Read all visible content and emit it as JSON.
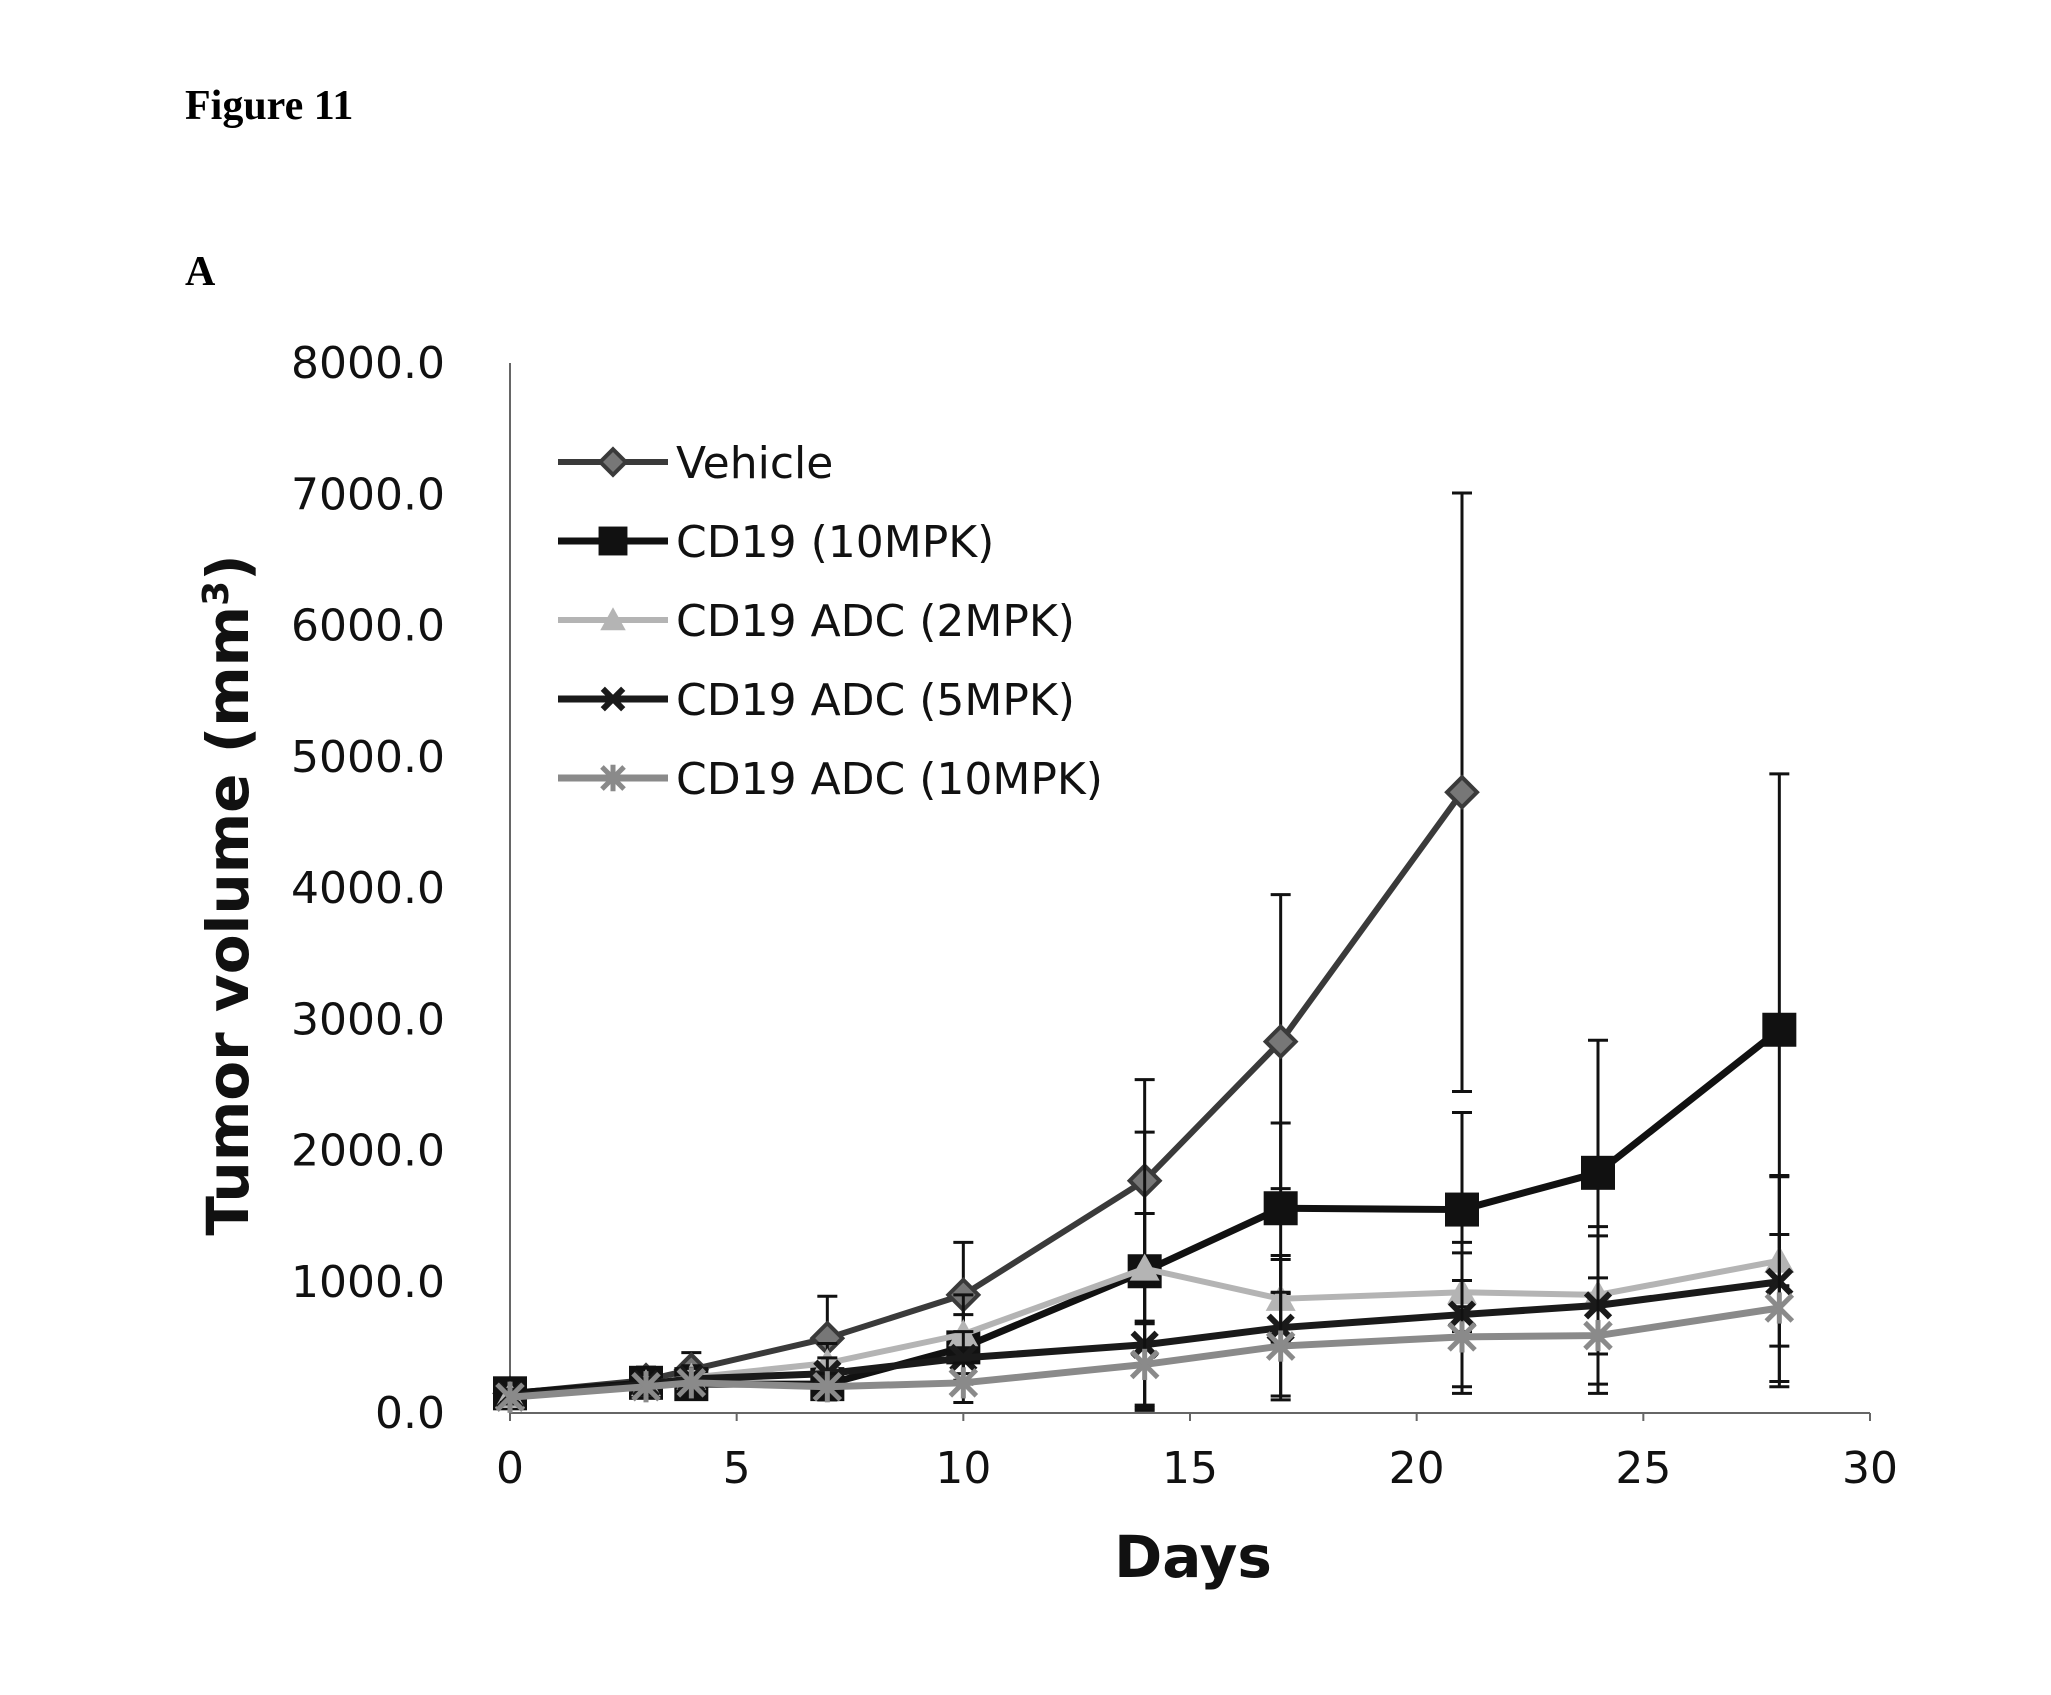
{
  "figure": {
    "title": "Figure 11",
    "panel_label": "A"
  },
  "colors": {
    "vehicle": "#3a3a3a",
    "cd19_10mpk": "#111111",
    "adc_2mpk": "#b4b4b4",
    "adc_5mpk": "#1a1a1a",
    "adc_10mpk": "#8a8a8a"
  },
  "chart_data": {
    "type": "line",
    "title": "",
    "xlabel": "Days",
    "ylabel": "Tumor volume (mm",
    "ylabel_sup": "3",
    "ylabel_close": ")",
    "xlim": [
      0,
      30
    ],
    "ylim": [
      0,
      8000
    ],
    "xticks": [
      0,
      5,
      10,
      15,
      20,
      25,
      30
    ],
    "xtick_labels": [
      "0",
      "5",
      "10",
      "15",
      "20",
      "25",
      "30"
    ],
    "yticks": [
      0,
      1000,
      2000,
      3000,
      4000,
      5000,
      6000,
      7000,
      8000
    ],
    "ytick_labels": [
      "0.0",
      "1000.0",
      "2000.0",
      "3000.0",
      "4000.0",
      "5000.0",
      "6000.0",
      "7000.0",
      "8000.0"
    ],
    "legend_position": "top-left",
    "series": [
      {
        "name": "Vehicle",
        "marker": "diamond",
        "color_key": "vehicle",
        "x": [
          0,
          3,
          4,
          7,
          10,
          14,
          17,
          21
        ],
        "y": [
          150,
          250,
          330,
          570,
          900,
          1770,
          2830,
          4730
        ],
        "err": [
          60,
          100,
          130,
          320,
          400,
          770,
          1120,
          2280
        ]
      },
      {
        "name": "CD19 (10MPK)",
        "marker": "square",
        "color_key": "cd19_10mpk",
        "x": [
          0,
          3,
          4,
          7,
          10,
          14,
          17,
          21,
          24,
          28
        ],
        "y": [
          150,
          230,
          220,
          220,
          500,
          1080,
          1560,
          1550,
          1830,
          2920
        ],
        "err": [
          60,
          90,
          100,
          120,
          250,
          1060,
          650,
          740,
          1010,
          1950
        ]
      },
      {
        "name": "CD19 ADC (2MPK)",
        "marker": "triangle",
        "color_key": "adc_2mpk",
        "x": [
          0,
          3,
          4,
          7,
          10,
          14,
          17,
          21,
          24,
          28
        ],
        "y": [
          130,
          220,
          270,
          380,
          600,
          1100,
          870,
          920,
          900,
          1160
        ],
        "err": [
          50,
          80,
          90,
          150,
          300,
          420,
          330,
          300,
          450,
          650
        ]
      },
      {
        "name": "CD19 ADC (5MPK)",
        "marker": "x",
        "color_key": "adc_5mpk",
        "x": [
          0,
          3,
          4,
          7,
          10,
          14,
          17,
          21,
          24,
          28
        ],
        "y": [
          130,
          220,
          260,
          300,
          420,
          520,
          650,
          750,
          820,
          1000
        ],
        "err": [
          50,
          70,
          80,
          120,
          200,
          460,
          520,
          550,
          600,
          800
        ]
      },
      {
        "name": "CD19 ADC (10MPK)",
        "marker": "star",
        "color_key": "adc_10mpk",
        "x": [
          0,
          3,
          4,
          7,
          10,
          14,
          17,
          21,
          24,
          28
        ],
        "y": [
          120,
          200,
          230,
          200,
          230,
          370,
          510,
          580,
          590,
          800
        ],
        "err": [
          50,
          60,
          70,
          100,
          150,
          330,
          410,
          430,
          440,
          560
        ]
      }
    ]
  }
}
